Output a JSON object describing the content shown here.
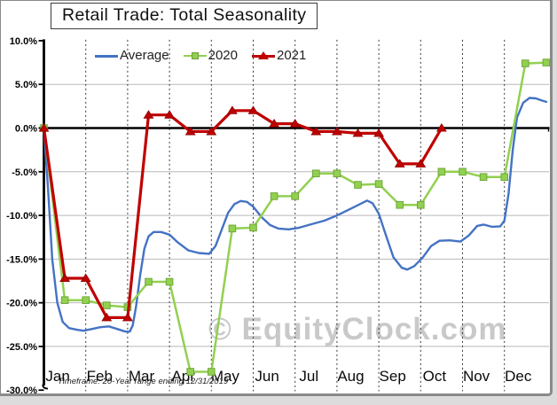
{
  "chart_data": {
    "type": "line",
    "title": "Retail Trade: Total Seasonality",
    "footnote": "Timeframe: 20-Year range ending 12/31/2019",
    "watermark": "© EquityClock.com",
    "y_axis": {
      "unit": "%",
      "min": -30,
      "max": 10,
      "tick_step": 5,
      "tick_labels": [
        "10.0%",
        "5.0%",
        "0.0%",
        "-5.0%",
        "-10.0%",
        "-15.0%",
        "-20.0%",
        "-25.0%",
        "-30.0%"
      ],
      "zero_line_emphasized": true,
      "grid": "solid-gray-horizontal"
    },
    "x_axis": {
      "months": [
        "Jan",
        "Feb",
        "Mar",
        "Apr",
        "May",
        "Jun",
        "Jul",
        "Aug",
        "Sep",
        "Oct",
        "Nov",
        "Dec"
      ],
      "grid": "dashed-vertical-at-month-boundaries"
    },
    "legend": {
      "position": "top-inside",
      "entries": [
        "Average",
        "2020",
        "2021"
      ]
    },
    "series": [
      {
        "name": "Average",
        "color": "#4472C4",
        "marker": "none",
        "x_unit": "month-fraction",
        "points": [
          [
            0,
            0
          ],
          [
            0.1,
            -7
          ],
          [
            0.2,
            -15
          ],
          [
            0.32,
            -20
          ],
          [
            0.45,
            -22.2
          ],
          [
            0.6,
            -22.9
          ],
          [
            0.8,
            -23.1
          ],
          [
            0.95,
            -23.2
          ],
          [
            1.15,
            -23.0
          ],
          [
            1.35,
            -22.8
          ],
          [
            1.55,
            -22.7
          ],
          [
            1.75,
            -23.0
          ],
          [
            1.95,
            -23.3
          ],
          [
            2.05,
            -23.3
          ],
          [
            2.12,
            -22.6
          ],
          [
            2.2,
            -20.5
          ],
          [
            2.3,
            -16.8
          ],
          [
            2.4,
            -13.8
          ],
          [
            2.5,
            -12.4
          ],
          [
            2.62,
            -11.9
          ],
          [
            2.8,
            -11.9
          ],
          [
            3.0,
            -12.2
          ],
          [
            3.2,
            -13.1
          ],
          [
            3.45,
            -14.0
          ],
          [
            3.7,
            -14.3
          ],
          [
            3.95,
            -14.4
          ],
          [
            4.1,
            -13.5
          ],
          [
            4.25,
            -11.6
          ],
          [
            4.4,
            -9.7
          ],
          [
            4.55,
            -8.7
          ],
          [
            4.7,
            -8.35
          ],
          [
            4.85,
            -8.45
          ],
          [
            5.0,
            -9.0
          ],
          [
            5.2,
            -10.2
          ],
          [
            5.4,
            -11.1
          ],
          [
            5.6,
            -11.5
          ],
          [
            5.85,
            -11.6
          ],
          [
            6.1,
            -11.4
          ],
          [
            6.4,
            -11.0
          ],
          [
            6.7,
            -10.6
          ],
          [
            7.0,
            -10.0
          ],
          [
            7.3,
            -9.3
          ],
          [
            7.55,
            -8.7
          ],
          [
            7.72,
            -8.3
          ],
          [
            7.85,
            -8.6
          ],
          [
            8.0,
            -9.8
          ],
          [
            8.15,
            -12.0
          ],
          [
            8.35,
            -14.8
          ],
          [
            8.55,
            -16.0
          ],
          [
            8.68,
            -16.2
          ],
          [
            8.85,
            -15.8
          ],
          [
            9.05,
            -14.8
          ],
          [
            9.25,
            -13.5
          ],
          [
            9.45,
            -12.9
          ],
          [
            9.7,
            -12.85
          ],
          [
            9.95,
            -13.0
          ],
          [
            10.15,
            -12.3
          ],
          [
            10.35,
            -11.2
          ],
          [
            10.5,
            -11.05
          ],
          [
            10.7,
            -11.3
          ],
          [
            10.9,
            -11.25
          ],
          [
            11.0,
            -10.6
          ],
          [
            11.1,
            -7.5
          ],
          [
            11.2,
            -2.5
          ],
          [
            11.3,
            1.2
          ],
          [
            11.45,
            2.9
          ],
          [
            11.6,
            3.45
          ],
          [
            11.75,
            3.4
          ],
          [
            11.9,
            3.15
          ],
          [
            12.0,
            3.0
          ]
        ]
      },
      {
        "name": "2020",
        "color": "#92D050",
        "marker": "square",
        "x_unit": "semi-month",
        "values": [
          0,
          -19.7,
          -19.7,
          -20.3,
          -20.5,
          -17.6,
          -17.6,
          -27.9,
          -27.9,
          -11.5,
          -11.4,
          -7.8,
          -7.8,
          -5.2,
          -5.2,
          -6.5,
          -6.4,
          -8.8,
          -8.8,
          -5.0,
          -5.0,
          -5.6,
          -5.6,
          7.4,
          7.5
        ]
      },
      {
        "name": "2021",
        "color": "#C00000",
        "marker": "triangle",
        "x_unit": "semi-month",
        "values": [
          0,
          -17.2,
          -17.2,
          -21.7,
          -21.7,
          1.5,
          1.5,
          -0.4,
          -0.4,
          2.0,
          2.0,
          0.5,
          0.5,
          -0.4,
          -0.4,
          -0.6,
          -0.6,
          -4.1,
          -4.1,
          0.0
        ]
      }
    ]
  }
}
